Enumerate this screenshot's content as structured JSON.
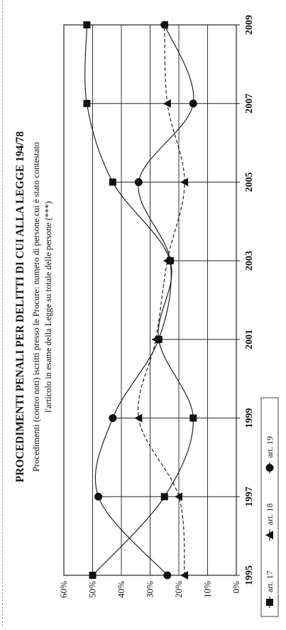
{
  "chart_data": {
    "type": "line",
    "title": "PROCEDIMENTI PENALI PER DELITTI DI CUI ALLA LEGGE 194/78",
    "subtitle_line1": "Procedimenti (contro noti) iscritti presso le Procure: numero di persone cui è stato contestato",
    "subtitle_line2": "l'articolo in esame della Legge su totale delle persone (***)",
    "x": [
      1995,
      1997,
      1999,
      2001,
      2003,
      2005,
      2007,
      2009
    ],
    "x_tick_labels": [
      "1995",
      "1997",
      "1999",
      "2001",
      "2003",
      "2005",
      "2007",
      "2009"
    ],
    "y_tick_labels": [
      "0%",
      "10%",
      "20%",
      "30%",
      "40%",
      "50%",
      "60%"
    ],
    "ylim": [
      0,
      60
    ],
    "grid": true,
    "legend_position": "bottom",
    "series": [
      {
        "name": "art. 17",
        "marker": "square",
        "values": [
          50,
          25,
          15,
          27,
          23,
          43,
          52,
          52
        ]
      },
      {
        "name": "art. 18",
        "marker": "triangle",
        "values": [
          18,
          20,
          34,
          28,
          24,
          18,
          24,
          25
        ]
      },
      {
        "name": "art. 19",
        "marker": "circle",
        "values": [
          24,
          48,
          43,
          27,
          23,
          34,
          15,
          25
        ]
      }
    ]
  }
}
